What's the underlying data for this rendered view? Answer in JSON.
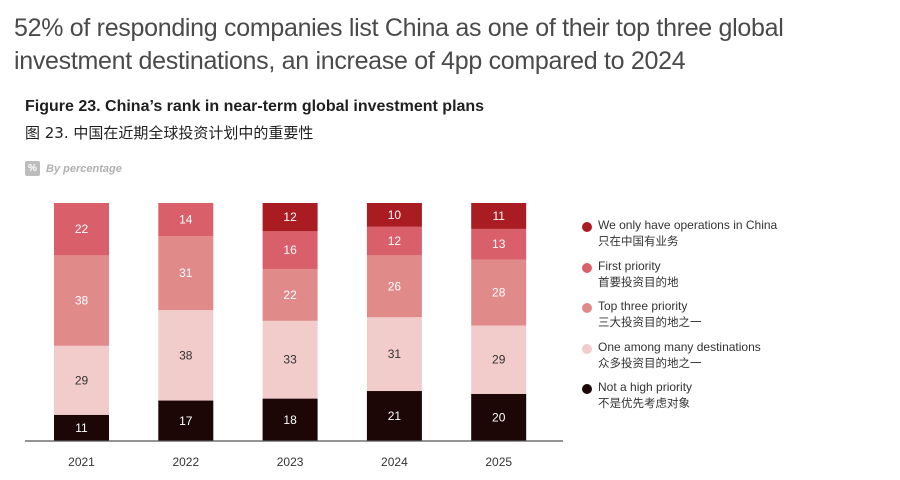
{
  "headline": "52% of responding companies list China as one of their top three global investment destinations, an increase of 4pp compared to 2024",
  "figure": {
    "title": "Figure 23. China’s rank in near-term global investment plans",
    "title_cn": "图 23. 中国在近期全球投资计划中的重要性",
    "unit_badge": "%",
    "unit_label": "By percentage"
  },
  "chart_data": {
    "type": "bar",
    "stacked": true,
    "orientation": "vertical",
    "title": "Figure 23. China’s rank in near-term global investment plans",
    "xlabel": "",
    "ylabel": "",
    "ylim": [
      0,
      100
    ],
    "grid": false,
    "legend_position": "right",
    "categories": [
      "2021",
      "2022",
      "2023",
      "2024",
      "2025"
    ],
    "series": [
      {
        "name": "Not a high priority",
        "name_cn": "不是优先考虑对象",
        "color": "#1c0606",
        "label_color": "#ffffff",
        "values": [
          11,
          17,
          18,
          21,
          20
        ]
      },
      {
        "name": "One among many destinations",
        "name_cn": "众多投资目的地之一",
        "color": "#f2cbcb",
        "label_color": "#333333",
        "values": [
          29,
          38,
          33,
          31,
          29
        ]
      },
      {
        "name": "Top three priority",
        "name_cn": "三大投资目的地之一",
        "color": "#e08a8a",
        "label_color": "#ffffff",
        "values": [
          38,
          31,
          22,
          26,
          28
        ]
      },
      {
        "name": "First priority",
        "name_cn": "首要投资目的地",
        "color": "#d95f6a",
        "label_color": "#ffffff",
        "values": [
          22,
          14,
          16,
          12,
          13
        ]
      },
      {
        "name": "We only have operations in China",
        "name_cn": "只在中国有业务",
        "color": "#a81c22",
        "label_color": "#ffffff",
        "values": [
          0,
          0,
          12,
          10,
          11
        ]
      }
    ],
    "legend_order": [
      "We only have operations in China",
      "First priority",
      "Top three priority",
      "One among many destinations",
      "Not a high priority"
    ]
  }
}
